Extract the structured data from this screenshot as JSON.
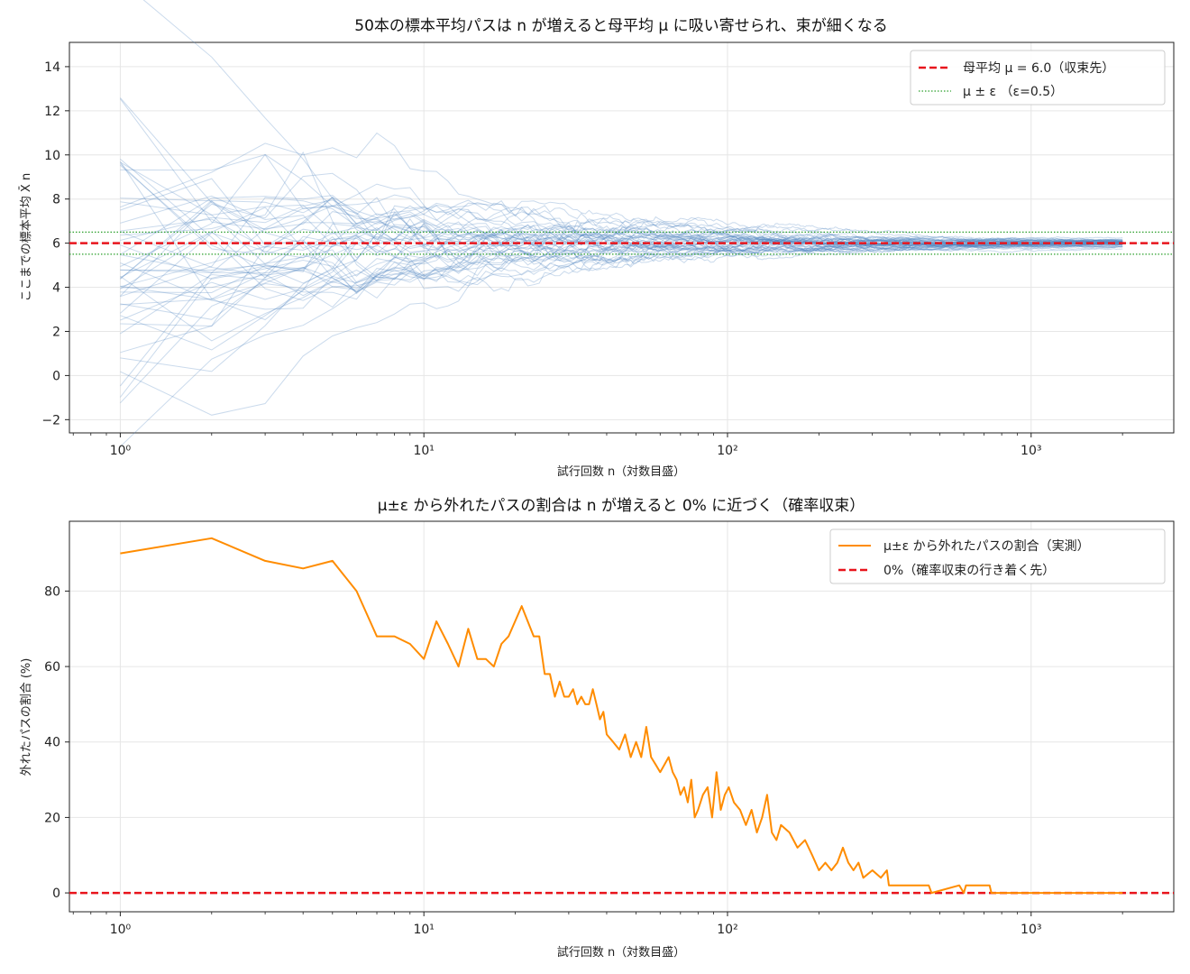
{
  "chart_data": [
    {
      "type": "line",
      "title": "50本の標本平均パスは n が増えると母平均 μ に吸い寄せられ、束が細くなる",
      "xlabel": "試行回数 n（対数目盛）",
      "ylabel": "ここまでの標本平均 X̄ n",
      "xscale": "log",
      "xlim": [
        0.68,
        2950
      ],
      "ylim": [
        -2.6,
        15.1
      ],
      "xticks": [
        1,
        10,
        100,
        1000
      ],
      "xtick_labels": [
        "10⁰",
        "10¹",
        "10²",
        "10³"
      ],
      "yticks": [
        -2,
        0,
        2,
        4,
        6,
        8,
        10,
        12,
        14
      ],
      "ytick_labels": [
        "−2",
        "0",
        "2",
        "4",
        "6",
        "8",
        "10",
        "12",
        "14"
      ],
      "grid": true,
      "legend_position": "top-right",
      "n_paths": 50,
      "n_max": 2000,
      "mu": 6.0,
      "epsilon": 0.5,
      "series": [
        {
          "name": "母平均 μ = 6.0（収束先）",
          "type": "hline",
          "y": 6.0,
          "color": "#e8141c",
          "style": "dashed"
        },
        {
          "name": "μ ± ε （ε=0.5）",
          "type": "hlines",
          "y": [
            5.5,
            6.5
          ],
          "color": "#2ca02c",
          "style": "dotted"
        }
      ],
      "paths_color": "#4f84c0"
    },
    {
      "type": "line",
      "title": "μ±ε から外れたパスの割合は n が増えると 0% に近づく（確率収束）",
      "xlabel": "試行回数 n（対数目盛）",
      "ylabel": "外れたパスの割合 (%)",
      "xscale": "log",
      "xlim": [
        0.68,
        2950
      ],
      "ylim": [
        -5,
        98.5
      ],
      "xticks": [
        1,
        10,
        100,
        1000
      ],
      "xtick_labels": [
        "10⁰",
        "10¹",
        "10²",
        "10³"
      ],
      "yticks": [
        0,
        20,
        40,
        60,
        80
      ],
      "ytick_labels": [
        "0",
        "20",
        "40",
        "60",
        "80"
      ],
      "grid": true,
      "legend_position": "top-right",
      "series": [
        {
          "name": "μ±ε から外れたパスの割合（実測）",
          "color": "#ff8c00",
          "x": [
            1,
            2,
            3,
            4,
            5,
            6,
            7,
            8,
            9,
            10,
            11,
            12,
            13,
            14,
            15,
            16,
            17,
            18,
            19,
            21,
            23,
            24,
            25,
            26,
            27,
            28,
            29,
            30,
            31,
            32,
            33,
            34,
            35,
            36,
            37,
            38,
            39,
            40,
            42,
            44,
            46,
            48,
            50,
            52,
            54,
            56,
            58,
            60,
            62,
            64,
            66,
            68,
            70,
            72,
            74,
            76,
            78,
            80,
            83,
            86,
            89,
            92,
            95,
            98,
            101,
            105,
            110,
            115,
            120,
            125,
            130,
            135,
            140,
            145,
            150,
            160,
            170,
            180,
            190,
            200,
            210,
            220,
            230,
            240,
            250,
            260,
            270,
            280,
            300,
            320,
            335,
            340,
            400,
            460,
            470,
            580,
            600,
            610,
            640,
            700,
            730,
            740,
            1000,
            1500,
            2000
          ],
          "values": [
            90,
            94,
            88,
            86,
            88,
            80,
            68,
            68,
            66,
            62,
            72,
            66,
            60,
            70,
            62,
            62,
            60,
            66,
            68,
            76,
            68,
            68,
            58,
            58,
            52,
            56,
            52,
            52,
            54,
            50,
            52,
            50,
            50,
            54,
            50,
            46,
            48,
            42,
            40,
            38,
            42,
            36,
            40,
            36,
            44,
            36,
            34,
            32,
            34,
            36,
            32,
            30,
            26,
            28,
            24,
            30,
            20,
            22,
            26,
            28,
            20,
            32,
            22,
            26,
            28,
            24,
            22,
            18,
            22,
            16,
            20,
            26,
            16,
            14,
            18,
            16,
            12,
            14,
            10,
            6,
            8,
            6,
            8,
            12,
            8,
            6,
            8,
            4,
            6,
            4,
            6,
            2,
            2,
            2,
            0,
            2,
            0,
            2,
            2,
            2,
            2,
            0,
            0,
            0,
            0
          ]
        },
        {
          "name": "0%（確率収束の行き着く先）",
          "type": "hline",
          "y": 0,
          "color": "#e8141c",
          "style": "dashed"
        }
      ]
    }
  ]
}
